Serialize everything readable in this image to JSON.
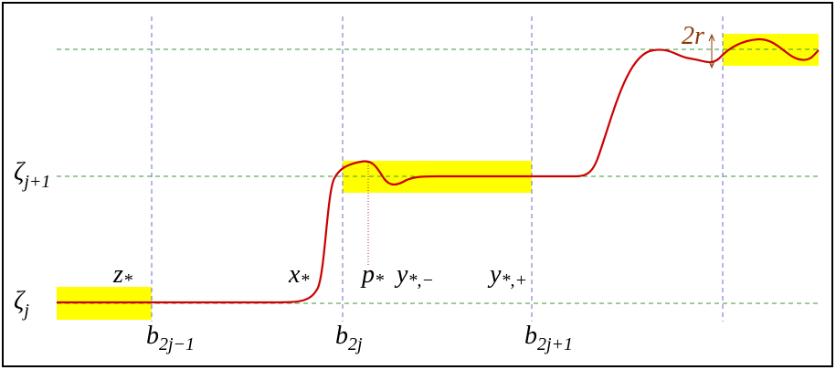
{
  "levels": [
    {
      "base": "ζ",
      "sub": "j"
    },
    {
      "base": "ζ",
      "sub": "j+1"
    }
  ],
  "points": [
    {
      "base": "z",
      "sub": "*"
    },
    {
      "base": "x",
      "sub": "*"
    },
    {
      "base": "p",
      "sub": "*"
    },
    {
      "base": "y",
      "sub": "*,−"
    },
    {
      "base": "y",
      "sub": "*,+"
    }
  ],
  "breaks": [
    {
      "base": "b",
      "sub": "2j−1"
    },
    {
      "base": "b",
      "sub": "2j"
    },
    {
      "base": "b",
      "sub": "2j+1"
    }
  ],
  "annotation": "2r"
}
